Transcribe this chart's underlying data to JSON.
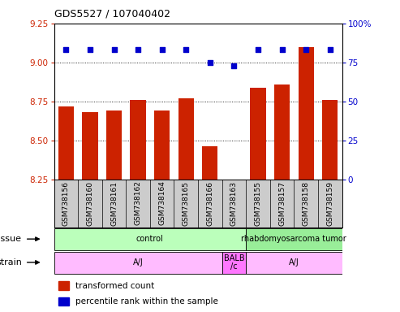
{
  "title": "GDS5527 / 107040402",
  "samples": [
    "GSM738156",
    "GSM738160",
    "GSM738161",
    "GSM738162",
    "GSM738164",
    "GSM738165",
    "GSM738166",
    "GSM738163",
    "GSM738155",
    "GSM738157",
    "GSM738158",
    "GSM738159"
  ],
  "bar_values": [
    8.72,
    8.68,
    8.69,
    8.76,
    8.69,
    8.77,
    8.46,
    8.25,
    8.84,
    8.86,
    9.1,
    8.76
  ],
  "dot_values": [
    83,
    83,
    83,
    83,
    83,
    83,
    75,
    73,
    83,
    83,
    83,
    83
  ],
  "ylim_left": [
    8.25,
    9.25
  ],
  "ylim_right": [
    0,
    100
  ],
  "yticks_left": [
    8.25,
    8.5,
    8.75,
    9.0,
    9.25
  ],
  "yticks_right": [
    0,
    25,
    50,
    75,
    100
  ],
  "bar_color": "#cc2200",
  "dot_color": "#0000cc",
  "bar_width": 0.65,
  "tissue_groups": [
    {
      "label": "control",
      "start": 0,
      "end": 7,
      "color": "#bbffbb"
    },
    {
      "label": "rhabdomyosarcoma tumor",
      "start": 8,
      "end": 11,
      "color": "#99ee99"
    }
  ],
  "strain_groups": [
    {
      "label": "A/J",
      "start": 0,
      "end": 6,
      "color": "#ffbbff"
    },
    {
      "label": "BALB\n/c",
      "start": 7,
      "end": 7,
      "color": "#ff77ff"
    },
    {
      "label": "A/J",
      "start": 8,
      "end": 11,
      "color": "#ffbbff"
    }
  ],
  "tissue_label": "tissue",
  "strain_label": "strain",
  "legend_bar_label": "transformed count",
  "legend_dot_label": "percentile rank within the sample",
  "background_color": "#ffffff",
  "plot_bg_color": "#ffffff",
  "yticklabel_color_left": "#cc2200",
  "yticklabel_color_right": "#0000cc",
  "xtick_bg_color": "#cccccc",
  "hgrid_vals": [
    8.5,
    8.75,
    9.0
  ]
}
